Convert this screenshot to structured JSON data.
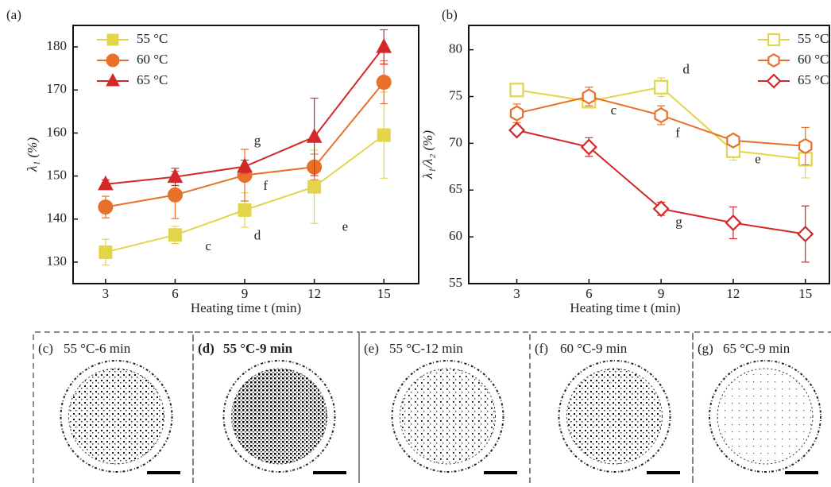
{
  "chart_data": [
    {
      "type": "line",
      "panel_label": "(a)",
      "xlabel": "Heating time t (min)",
      "ylabel": "λ₁ (%)",
      "x": [
        3,
        6,
        9,
        12,
        15
      ],
      "xlim": [
        1.6,
        16.5
      ],
      "xticks": [
        3,
        6,
        9,
        12,
        15
      ],
      "ylim": [
        125,
        185
      ],
      "yticks": [
        130,
        140,
        150,
        160,
        170,
        180
      ],
      "legend": "upper left",
      "series": [
        {
          "name": "55 °C",
          "color": "#e3d54a",
          "marker": "square",
          "filled": true,
          "values": [
            132.3,
            136.3,
            142.1,
            147.5,
            159.5
          ],
          "errors": [
            3,
            2,
            4,
            8.5,
            10
          ]
        },
        {
          "name": "60 °C",
          "color": "#e8702a",
          "marker": "circle",
          "filled": true,
          "values": [
            142.8,
            145.6,
            150.2,
            152.1,
            171.8
          ],
          "errors": [
            2.5,
            5.5,
            6,
            3,
            5
          ]
        },
        {
          "name": "65 °C",
          "color": "#d42828",
          "marker": "triangle",
          "filled": true,
          "values": [
            148.1,
            149.8,
            152.2,
            159.1,
            180
          ],
          "errors": [
            1,
            2,
            1.5,
            9,
            4
          ]
        }
      ],
      "annotations": [
        {
          "text": "c",
          "x": 7.3,
          "y": 133.5
        },
        {
          "text": "d",
          "x": 9.4,
          "y": 136
        },
        {
          "text": "e",
          "x": 13.2,
          "y": 138
        },
        {
          "text": "f",
          "x": 9.8,
          "y": 147.5
        },
        {
          "text": "g",
          "x": 9.4,
          "y": 158
        }
      ]
    },
    {
      "type": "line",
      "panel_label": "(b)",
      "xlabel": "Heating time t (min)",
      "ylabel": "λ₁/λ₂ (%)",
      "x": [
        3,
        6,
        9,
        12,
        15
      ],
      "xlim": [
        1,
        16
      ],
      "xticks": [
        3,
        6,
        9,
        12,
        15
      ],
      "ylim": [
        55,
        82.6
      ],
      "yticks": [
        55,
        60,
        65,
        70,
        75,
        80
      ],
      "legend": "upper right",
      "series": [
        {
          "name": "55 °C",
          "color": "#e3d54a",
          "marker": "square",
          "filled": false,
          "values": [
            75.7,
            74.5,
            76,
            69.2,
            68.3
          ],
          "errors": [
            0.5,
            0.5,
            1,
            1,
            2
          ]
        },
        {
          "name": "60 °C",
          "color": "#e8702a",
          "marker": "hexagon",
          "filled": false,
          "values": [
            73.2,
            75,
            73,
            70.3,
            69.7
          ],
          "errors": [
            1,
            1,
            1,
            0.5,
            2
          ]
        },
        {
          "name": "65 °C",
          "color": "#d42828",
          "marker": "diamond",
          "filled": false,
          "values": [
            71.4,
            69.6,
            63,
            61.5,
            60.3
          ],
          "errors": [
            0.5,
            1,
            0.7,
            1.7,
            3
          ]
        }
      ],
      "annotations": [
        {
          "text": "d",
          "x": 9.9,
          "y": 77.8
        },
        {
          "text": "c",
          "x": 6.9,
          "y": 73.4
        },
        {
          "text": "f",
          "x": 9.6,
          "y": 71
        },
        {
          "text": "e",
          "x": 12.9,
          "y": 68.2
        },
        {
          "text": "g",
          "x": 9.6,
          "y": 61.5
        }
      ]
    }
  ],
  "panels": [
    {
      "label": "(c)",
      "title": "55 °C-6 min"
    },
    {
      "label": "(d)",
      "title": "55 °C-9 min"
    },
    {
      "label": "(e)",
      "title": "55 °C-12 min"
    },
    {
      "label": "(f)",
      "title": "60 °C-9 min"
    },
    {
      "label": "(g)",
      "title": "65 °C-9 min"
    }
  ]
}
